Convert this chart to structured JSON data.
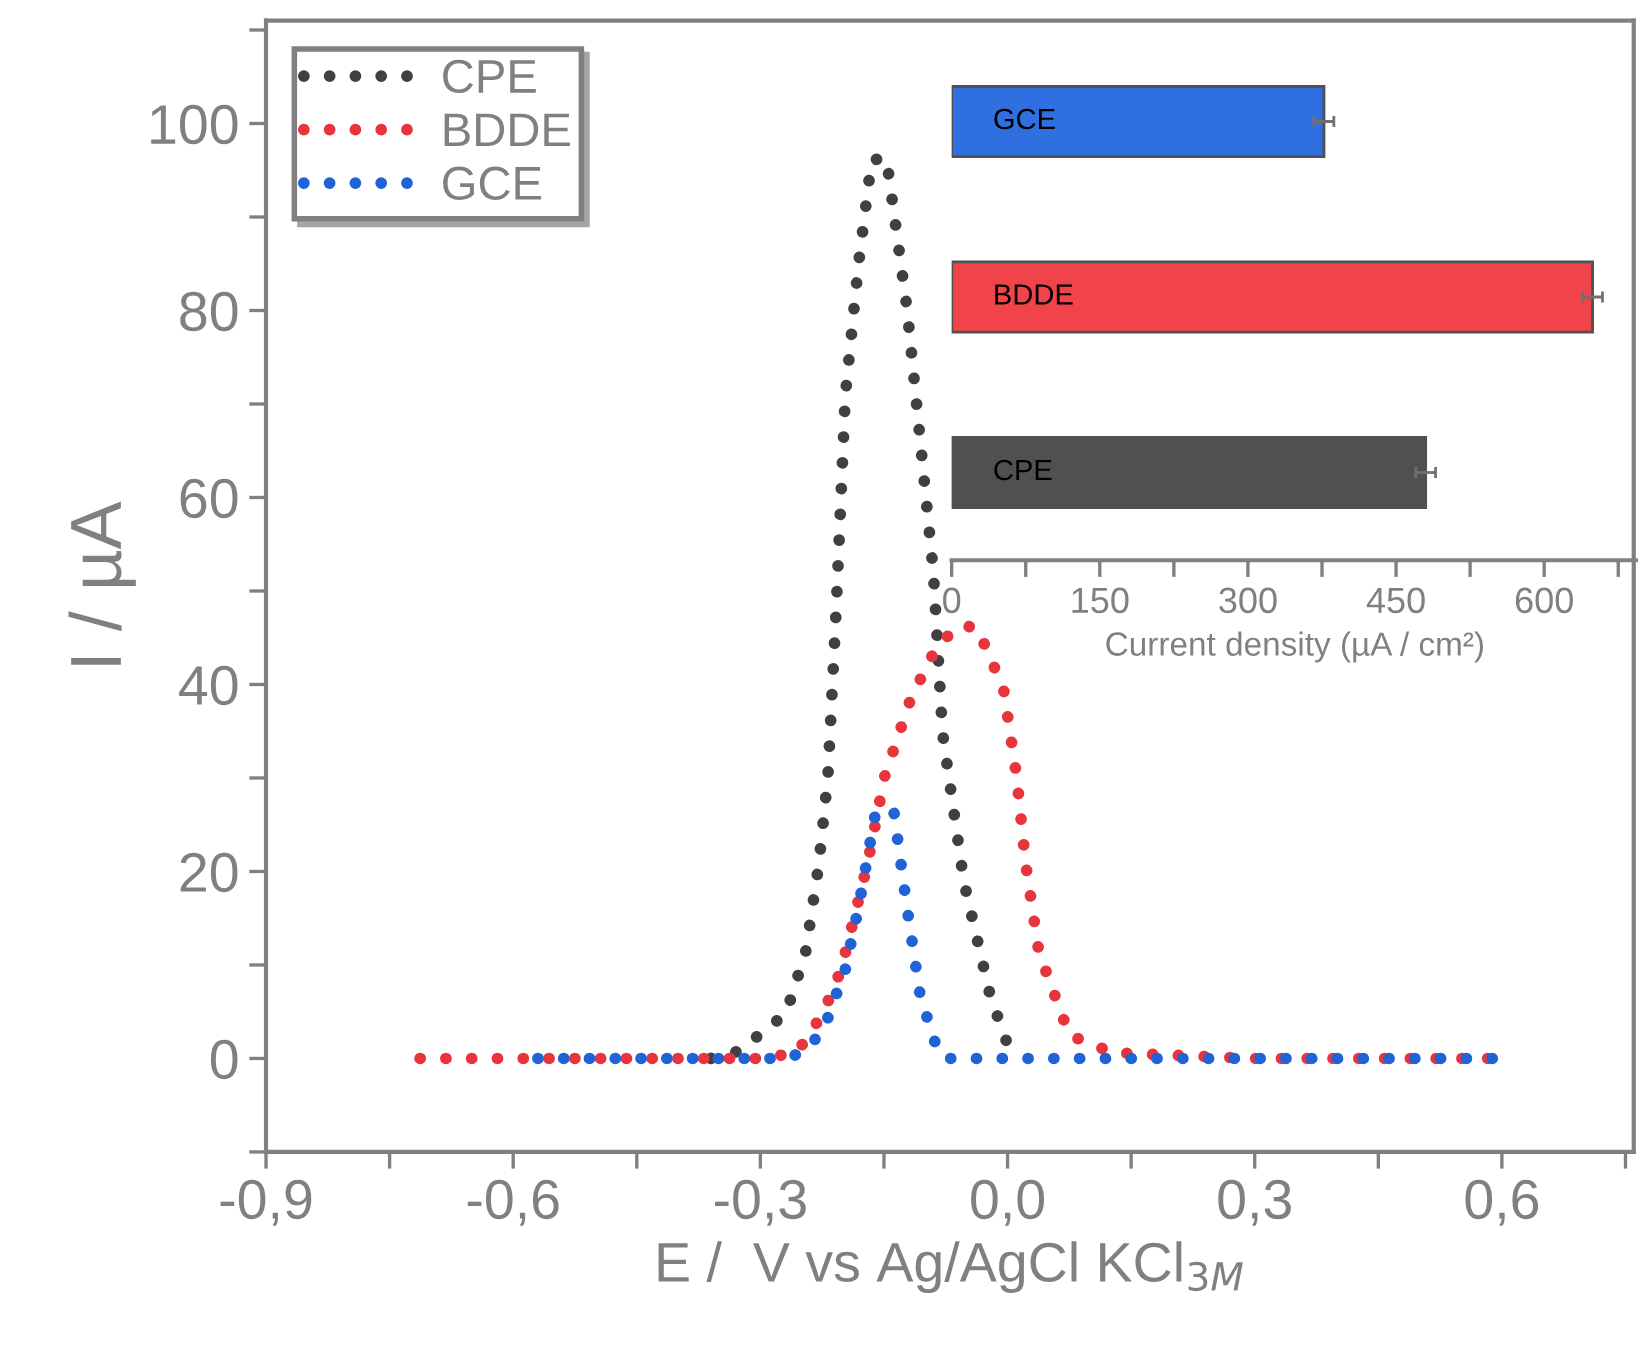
{
  "chart_data": [
    {
      "type": "line",
      "xlabel": "E /  V vs Ag/AgCl KCl$_{3M}$",
      "ylabel": "I / µA",
      "line_style": "dotted",
      "marker": "none",
      "legend": "top left",
      "grid": false,
      "xlim": [
        -0.9,
        0.76
      ],
      "ylim": [
        -10,
        111
      ],
      "xticks": [
        {
          "value": -0.9,
          "label": "-0,9"
        },
        {
          "value": -0.75,
          "label": null
        },
        {
          "value": -0.6,
          "label": "-0,6"
        },
        {
          "value": -0.45,
          "label": null
        },
        {
          "value": -0.3,
          "label": "-0,3"
        },
        {
          "value": -0.15,
          "label": null
        },
        {
          "value": 0.0,
          "label": "0,0"
        },
        {
          "value": 0.15,
          "label": null
        },
        {
          "value": 0.3,
          "label": "0,3"
        },
        {
          "value": 0.45,
          "label": null
        },
        {
          "value": 0.6,
          "label": "0,6"
        },
        {
          "value": 0.75,
          "label": null
        }
      ],
      "yticks": [
        {
          "value": -10,
          "label": null
        },
        0,
        {
          "value": 10,
          "label": null
        },
        20,
        {
          "value": 30,
          "label": null
        },
        40,
        {
          "value": 50,
          "label": null
        },
        60,
        {
          "value": 70,
          "label": null
        },
        80,
        {
          "value": 90,
          "label": null
        },
        100,
        {
          "value": 110,
          "label": null
        }
      ],
      "series": [
        {
          "name": "CPE",
          "color": "#404040",
          "x": [
            -0.36,
            -0.326,
            -0.269,
            -0.245,
            -0.229,
            -0.218,
            -0.208,
            -0.197,
            -0.181,
            -0.165,
            -0.147,
            -0.122,
            -0.106,
            -0.09,
            -0.079,
            -0.053,
            -0.021,
            0.0
          ],
          "values": [
            0,
            0.8,
            4.8,
            11.4,
            20.8,
            30.2,
            48,
            70.8,
            84.9,
            96.1,
            96.3,
            80.2,
            66.1,
            52,
            34.9,
            18.9,
            6.7,
            1.5
          ]
        },
        {
          "name": "BDDE",
          "color": "#e8343c",
          "x": [
            -0.713,
            -0.5,
            -0.3,
            -0.256,
            -0.224,
            -0.202,
            -0.17,
            -0.149,
            -0.117,
            -0.085,
            -0.058,
            -0.037,
            -0.005,
            0.011,
            0.022,
            0.038,
            0.075,
            0.128,
            0.3,
            0.59
          ],
          "values": [
            0,
            0,
            0,
            0.6,
            4.8,
            9.5,
            20.8,
            30.2,
            38.6,
            44.2,
            46.3,
            46.1,
            39.6,
            30.2,
            20.8,
            11.4,
            2.5,
            0.6,
            0,
            0
          ]
        },
        {
          "name": "GCE",
          "color": "#1f63d6",
          "x": [
            -0.57,
            -0.4,
            -0.27,
            -0.25,
            -0.224,
            -0.197,
            -0.181,
            -0.16,
            -0.138,
            -0.122,
            -0.106,
            -0.085,
            -0.075,
            0.2,
            0.59
          ],
          "values": [
            0,
            0,
            0,
            0.6,
            2.9,
            9.5,
            16.1,
            26.4,
            26.4,
            16.1,
            6.7,
            0.9,
            0,
            0,
            0
          ]
        }
      ]
    },
    {
      "type": "bar",
      "orientation": "horizontal",
      "xlabel": "Current density (µA / cm²)",
      "categories": [
        "GCE",
        "BDDE",
        "CPE"
      ],
      "values": [
        377,
        649,
        480
      ],
      "errors": [
        10,
        10,
        10
      ],
      "colors": [
        "#2f6fe0",
        "#f0444a",
        "#505050"
      ],
      "xlim": [
        0,
        695
      ],
      "xticks": [
        0,
        {
          "value": 75,
          "label": null
        },
        150,
        {
          "value": 225,
          "label": null
        },
        300,
        {
          "value": 375,
          "label": null
        },
        450,
        {
          "value": 525,
          "label": null
        },
        600,
        {
          "value": 675,
          "label": null
        }
      ]
    }
  ]
}
